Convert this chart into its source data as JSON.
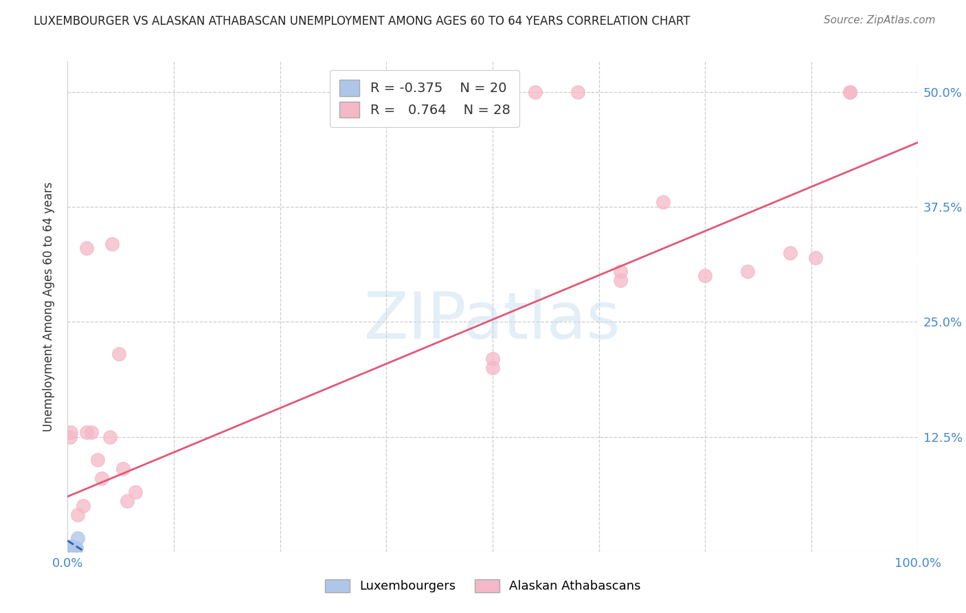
{
  "title": "LUXEMBOURGER VS ALASKAN ATHABASCAN UNEMPLOYMENT AMONG AGES 60 TO 64 YEARS CORRELATION CHART",
  "source": "Source: ZipAtlas.com",
  "ylabel": "Unemployment Among Ages 60 to 64 years",
  "xlabel": "",
  "xlim": [
    0,
    1.0
  ],
  "ylim": [
    0,
    0.5333
  ],
  "xticks": [
    0.0,
    0.125,
    0.25,
    0.375,
    0.5,
    0.625,
    0.75,
    0.875,
    1.0
  ],
  "xticklabels": [
    "0.0%",
    "",
    "",
    "",
    "",
    "",
    "",
    "",
    "100.0%"
  ],
  "yticks": [
    0.0,
    0.125,
    0.25,
    0.375,
    0.5
  ],
  "yticklabels": [
    "",
    "12.5%",
    "25.0%",
    "37.5%",
    "50.0%"
  ],
  "watermark": "ZIPatlas",
  "legend_blue_R": "-0.375",
  "legend_blue_N": "20",
  "legend_pink_R": "0.764",
  "legend_pink_N": "28",
  "blue_scatter_x": [
    0.002,
    0.002,
    0.003,
    0.003,
    0.003,
    0.004,
    0.004,
    0.004,
    0.004,
    0.005,
    0.005,
    0.005,
    0.006,
    0.006,
    0.007,
    0.007,
    0.008,
    0.009,
    0.01,
    0.012
  ],
  "blue_scatter_y": [
    0.005,
    0.003,
    0.005,
    0.004,
    0.002,
    0.006,
    0.005,
    0.003,
    0.002,
    0.005,
    0.003,
    0.001,
    0.005,
    0.002,
    0.004,
    0.002,
    0.004,
    0.003,
    0.004,
    0.015
  ],
  "pink_scatter_x": [
    0.003,
    0.004,
    0.012,
    0.018,
    0.022,
    0.022,
    0.028,
    0.035,
    0.04,
    0.05,
    0.052,
    0.06,
    0.065,
    0.07,
    0.08,
    0.5,
    0.5,
    0.55,
    0.6,
    0.65,
    0.65,
    0.7,
    0.75,
    0.8,
    0.85,
    0.88,
    0.92,
    0.92
  ],
  "pink_scatter_y": [
    0.125,
    0.13,
    0.04,
    0.05,
    0.13,
    0.33,
    0.13,
    0.1,
    0.08,
    0.125,
    0.335,
    0.215,
    0.09,
    0.055,
    0.065,
    0.2,
    0.21,
    0.5,
    0.5,
    0.305,
    0.295,
    0.38,
    0.3,
    0.305,
    0.325,
    0.32,
    0.5,
    0.5
  ],
  "blue_line_x": [
    0.0,
    0.02
  ],
  "blue_line_y": [
    0.012,
    0.0
  ],
  "pink_line_x": [
    0.0,
    1.0
  ],
  "pink_line_y": [
    0.06,
    0.445
  ],
  "blue_color": "#aec6e8",
  "pink_color": "#f4b8c8",
  "blue_line_color": "#3060b0",
  "pink_line_color": "#e05878",
  "grid_color": "#cccccc",
  "tick_color_x": "#4488cc",
  "tick_color_y": "#4488cc",
  "background_color": "#ffffff"
}
